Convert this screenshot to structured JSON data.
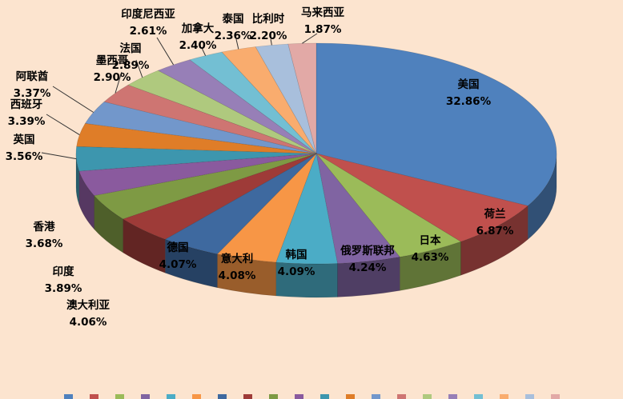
{
  "page": {
    "background_color": "#FCE4CF"
  },
  "chart_data": {
    "type": "pie",
    "projection": "3d",
    "title": "",
    "unit": "%",
    "start_angle_deg": 0,
    "direction": "clockwise",
    "legend_position": "bottom-cropped",
    "label_format": "{name} {value}%",
    "categories": [
      "美国",
      "荷兰",
      "日本",
      "俄罗斯联邦",
      "韩国",
      "意大利",
      "德国",
      "澳大利亚",
      "印度",
      "香港",
      "英国",
      "西班牙",
      "阿联酋",
      "墨西哥",
      "法国",
      "印度尼西亚",
      "加拿大",
      "泰国",
      "比利时",
      "马来西亚"
    ],
    "values": [
      32.86,
      6.87,
      4.63,
      4.24,
      4.09,
      4.08,
      4.07,
      4.06,
      3.89,
      3.68,
      3.56,
      3.39,
      3.37,
      2.9,
      2.89,
      2.61,
      2.4,
      2.36,
      2.2,
      1.87
    ],
    "colors": [
      "#4F81BD",
      "#C0504D",
      "#9BBB59",
      "#8064A2",
      "#4BACC6",
      "#F79646",
      "#3E699F",
      "#9E3B38",
      "#7E9A44",
      "#8A5A9E",
      "#3D96AE",
      "#DF7D28",
      "#7297CB",
      "#CE7572",
      "#AFC97E",
      "#977FB7",
      "#73BFD3",
      "#F9AC6E",
      "#A8BFDC",
      "#E2A9A6"
    ],
    "label_text_color": "#000000"
  }
}
